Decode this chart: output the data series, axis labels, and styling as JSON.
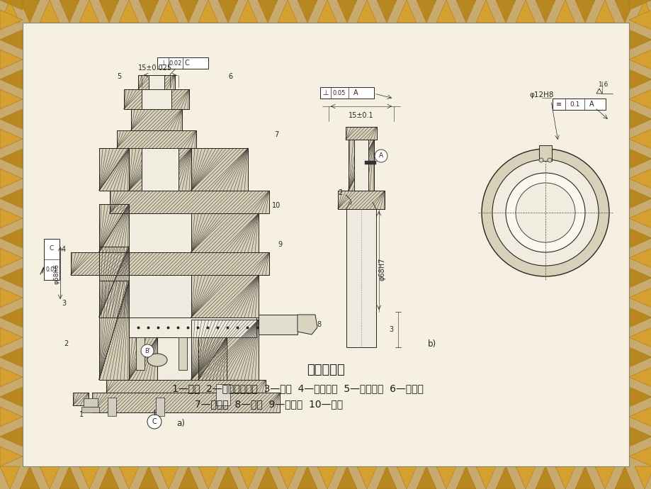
{
  "bg_color": "#c8a96e",
  "paper_color": "#f5f0e2",
  "inner_paper_color": "#faf7f0",
  "line_color": "#2a2520",
  "hatch_color": "#4a4540",
  "hatch_face": "#d8d0b8",
  "title": "固定式钻模",
  "caption1": "1—螺钉  2—转动开口垫圈  3—拉杆  4—定位法兰  5—快换钻套  6—钻模板",
  "caption2": "7—夹具体  8—手柄  9—偏心轮  10—弹簧",
  "label_a": "a)",
  "label_b": "b)",
  "border_colors": [
    "#c8a040",
    "#b89030",
    "#d4b050"
  ],
  "tri_colors_odd": "#c8a040",
  "tri_colors_even": "#b89030"
}
